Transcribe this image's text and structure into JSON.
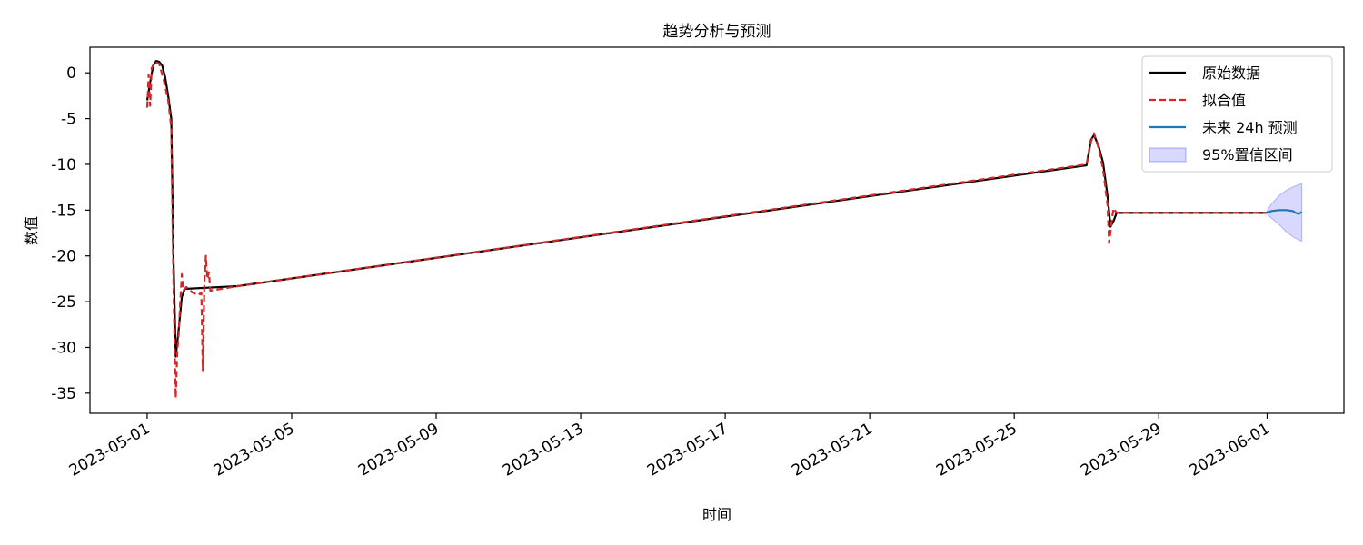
{
  "chart_data": {
    "type": "line",
    "title": "趋势分析与预测",
    "xlabel": "时间",
    "ylabel": "数值",
    "x_ticks": [
      "2023-05-01",
      "2023-05-05",
      "2023-05-09",
      "2023-05-13",
      "2023-05-17",
      "2023-05-21",
      "2023-05-25",
      "2023-05-29",
      "2023-06-01"
    ],
    "y_ticks": [
      0,
      -5,
      -10,
      -15,
      -20,
      -25,
      -30,
      -35
    ],
    "xlim": [
      "2023-04-29T10:00",
      "2023-06-03T03:00"
    ],
    "ylim": [
      -37.2,
      2.8
    ],
    "grid": false,
    "legend_position": "top-right",
    "legend": [
      "原始数据",
      "拟合值",
      "未来 24h 预测",
      "95%置信区间"
    ],
    "colors": {
      "original": "#000000",
      "fitted": "#d62728",
      "forecast": "#1f77b4",
      "ci_fill": "#0000ff",
      "axis": "#000000"
    },
    "series": [
      {
        "name": "原始数据",
        "style": "solid",
        "points": [
          [
            "2023-05-01T00:00",
            -3.0
          ],
          [
            "2023-05-01T02:00",
            -1.0
          ],
          [
            "2023-05-01T04:00",
            0.8
          ],
          [
            "2023-05-01T06:00",
            1.3
          ],
          [
            "2023-05-01T08:00",
            1.2
          ],
          [
            "2023-05-01T10:00",
            0.8
          ],
          [
            "2023-05-01T12:00",
            -0.5
          ],
          [
            "2023-05-01T14:00",
            -2.5
          ],
          [
            "2023-05-01T16:00",
            -5.0
          ],
          [
            "2023-05-01T17:30",
            -20.0
          ],
          [
            "2023-05-01T19:00",
            -31.0
          ],
          [
            "2023-05-01T21:00",
            -28.0
          ],
          [
            "2023-05-01T23:00",
            -24.5
          ],
          [
            "2023-05-02T01:00",
            -23.6
          ],
          [
            "2023-05-03T12:00",
            -23.3
          ],
          [
            "2023-05-27T00:00",
            -10.1
          ],
          [
            "2023-05-27T03:00",
            -7.3
          ],
          [
            "2023-05-27T05:00",
            -6.8
          ],
          [
            "2023-05-27T08:00",
            -8.0
          ],
          [
            "2023-05-27T11:00",
            -9.8
          ],
          [
            "2023-05-27T14:00",
            -13.5
          ],
          [
            "2023-05-27T16:00",
            -16.8
          ],
          [
            "2023-05-27T18:00",
            -16.2
          ],
          [
            "2023-05-27T20:00",
            -15.3
          ],
          [
            "2023-05-31T23:00",
            -15.3
          ]
        ]
      },
      {
        "name": "拟合值",
        "style": "dashed",
        "points": [
          [
            "2023-05-01T00:00",
            -3.8
          ],
          [
            "2023-05-01T01:00",
            -0.2
          ],
          [
            "2023-05-01T02:00",
            -3.6
          ],
          [
            "2023-05-01T03:00",
            0.5
          ],
          [
            "2023-05-01T05:00",
            1.2
          ],
          [
            "2023-05-01T08:00",
            1.0
          ],
          [
            "2023-05-01T11:00",
            -0.8
          ],
          [
            "2023-05-01T14:00",
            -3.0
          ],
          [
            "2023-05-01T16:00",
            -6.0
          ],
          [
            "2023-05-01T17:00",
            -18.0
          ],
          [
            "2023-05-01T18:00",
            -28.0
          ],
          [
            "2023-05-01T19:00",
            -35.5
          ],
          [
            "2023-05-01T20:00",
            -30.5
          ],
          [
            "2023-05-01T21:00",
            -28.5
          ],
          [
            "2023-05-01T22:00",
            -25.0
          ],
          [
            "2023-05-01T23:00",
            -22.0
          ],
          [
            "2023-05-02T00:00",
            -23.8
          ],
          [
            "2023-05-02T02:00",
            -23.4
          ],
          [
            "2023-05-02T06:00",
            -24.0
          ],
          [
            "2023-05-02T10:00",
            -24.3
          ],
          [
            "2023-05-02T12:00",
            -24.0
          ],
          [
            "2023-05-02T13:00",
            -32.5
          ],
          [
            "2023-05-02T14:00",
            -23.0
          ],
          [
            "2023-05-02T15:00",
            -20.0
          ],
          [
            "2023-05-02T16:00",
            -22.5
          ],
          [
            "2023-05-02T17:00",
            -21.8
          ],
          [
            "2023-05-02T18:00",
            -23.8
          ],
          [
            "2023-05-03T12:00",
            -23.3
          ],
          [
            "2023-05-27T00:00",
            -10.0
          ],
          [
            "2023-05-27T03:00",
            -7.5
          ],
          [
            "2023-05-27T05:00",
            -6.6
          ],
          [
            "2023-05-27T08:00",
            -8.2
          ],
          [
            "2023-05-27T11:00",
            -10.5
          ],
          [
            "2023-05-27T14:00",
            -14.5
          ],
          [
            "2023-05-27T15:00",
            -18.6
          ],
          [
            "2023-05-27T17:00",
            -15.8
          ],
          [
            "2023-05-27T18:00",
            -14.8
          ],
          [
            "2023-05-27T20:00",
            -15.3
          ],
          [
            "2023-05-31T23:00",
            -15.3
          ]
        ]
      },
      {
        "name": "未来 24h 预测",
        "style": "solid",
        "points": [
          [
            "2023-05-31T23:00",
            -15.3
          ],
          [
            "2023-06-01T03:00",
            -15.1
          ],
          [
            "2023-06-01T08:00",
            -15.0
          ],
          [
            "2023-06-01T13:00",
            -15.0
          ],
          [
            "2023-06-01T17:00",
            -15.1
          ],
          [
            "2023-06-01T19:00",
            -15.3
          ],
          [
            "2023-06-01T21:00",
            -15.4
          ],
          [
            "2023-06-01T23:00",
            -15.2
          ]
        ]
      }
    ],
    "confidence_band": {
      "name": "95%置信区间",
      "upper": [
        [
          "2023-05-31T23:00",
          -15.3
        ],
        [
          "2023-06-01T03:00",
          -14.3
        ],
        [
          "2023-06-01T08:00",
          -13.4
        ],
        [
          "2023-06-01T13:00",
          -12.8
        ],
        [
          "2023-06-01T18:00",
          -12.4
        ],
        [
          "2023-06-01T23:00",
          -12.1
        ]
      ],
      "lower": [
        [
          "2023-05-31T23:00",
          -15.3
        ],
        [
          "2023-06-01T03:00",
          -15.9
        ],
        [
          "2023-06-01T08:00",
          -16.6
        ],
        [
          "2023-06-01T13:00",
          -17.4
        ],
        [
          "2023-06-01T18:00",
          -18.0
        ],
        [
          "2023-06-01T23:00",
          -18.4
        ]
      ]
    }
  }
}
